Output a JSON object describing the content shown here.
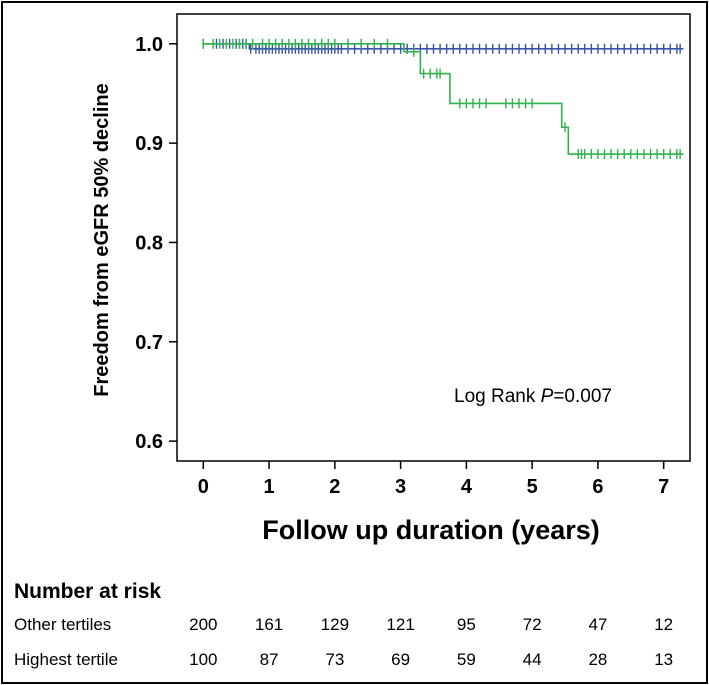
{
  "chart_data": {
    "type": "line",
    "subtype": "kaplan-meier",
    "title": "",
    "xlabel": "Follow up duration (years)",
    "ylabel": "Freedom from eGFR 50% decline",
    "xlim": [
      -0.4,
      7.4
    ],
    "ylim": [
      0.58,
      1.03
    ],
    "xticks": [
      "0",
      "1",
      "2",
      "3",
      "4",
      "5",
      "6",
      "7"
    ],
    "yticks": [
      "0.6",
      "0.7",
      "0.8",
      "0.9",
      "1.0"
    ],
    "annotation": {
      "prefix": "Log Rank ",
      "p_symbol": "P",
      "value": "=0.007"
    },
    "series": [
      {
        "name": "Other tertiles",
        "color": "#3a52a8",
        "steps": [
          [
            0,
            1.0
          ],
          [
            0.7,
            0.995
          ],
          [
            7.3,
            0.995
          ]
        ],
        "censor_x": [
          0,
          0.2,
          0.3,
          0.4,
          0.5,
          0.55,
          0.6,
          0.65,
          0.72,
          0.8,
          0.85,
          0.9,
          0.95,
          1.0,
          1.05,
          1.1,
          1.15,
          1.2,
          1.25,
          1.3,
          1.35,
          1.4,
          1.45,
          1.5,
          1.55,
          1.6,
          1.65,
          1.7,
          1.75,
          1.8,
          1.85,
          1.9,
          1.95,
          2.0,
          2.05,
          2.1,
          2.2,
          2.3,
          2.4,
          2.5,
          2.6,
          2.7,
          2.8,
          2.9,
          3.0,
          3.1,
          3.2,
          3.3,
          3.4,
          3.5,
          3.6,
          3.7,
          3.8,
          3.9,
          4.0,
          4.1,
          4.2,
          4.3,
          4.4,
          4.5,
          4.6,
          4.7,
          4.8,
          4.9,
          5.0,
          5.1,
          5.2,
          5.3,
          5.4,
          5.5,
          5.6,
          5.7,
          5.8,
          5.9,
          6.0,
          6.1,
          6.2,
          6.3,
          6.4,
          6.5,
          6.6,
          6.7,
          6.8,
          6.9,
          7.0,
          7.1,
          7.2,
          7.25
        ]
      },
      {
        "name": "Highest tertile",
        "color": "#2fb34a",
        "steps": [
          [
            0,
            1.0
          ],
          [
            3.05,
            0.992
          ],
          [
            3.3,
            0.97
          ],
          [
            3.75,
            0.94
          ],
          [
            5.45,
            0.916
          ],
          [
            5.55,
            0.889
          ],
          [
            7.3,
            0.889
          ]
        ],
        "censor_x": [
          0,
          0.15,
          0.25,
          0.35,
          0.45,
          0.55,
          0.65,
          0.75,
          0.9,
          1.0,
          1.1,
          1.2,
          1.3,
          1.4,
          1.5,
          1.6,
          1.7,
          1.8,
          1.9,
          2.0,
          2.2,
          2.4,
          2.6,
          2.8,
          3.2,
          3.35,
          3.45,
          3.55,
          3.6,
          3.9,
          4.0,
          4.1,
          4.2,
          4.3,
          4.6,
          4.7,
          4.8,
          4.9,
          5.0,
          5.5,
          5.7,
          5.75,
          5.8,
          5.9,
          6.0,
          6.1,
          6.2,
          6.3,
          6.4,
          6.5,
          6.6,
          6.7,
          6.8,
          6.9,
          7.0,
          7.1,
          7.2,
          7.25
        ]
      }
    ]
  },
  "risk_table": {
    "title": "Number at risk",
    "rows": [
      {
        "label": "Other tertiles",
        "values": [
          "200",
          "161",
          "129",
          "121",
          "95",
          "72",
          "47",
          "12"
        ]
      },
      {
        "label": "Highest tertile",
        "values": [
          "100",
          "87",
          "73",
          "69",
          "59",
          "44",
          "28",
          "13"
        ]
      }
    ]
  }
}
